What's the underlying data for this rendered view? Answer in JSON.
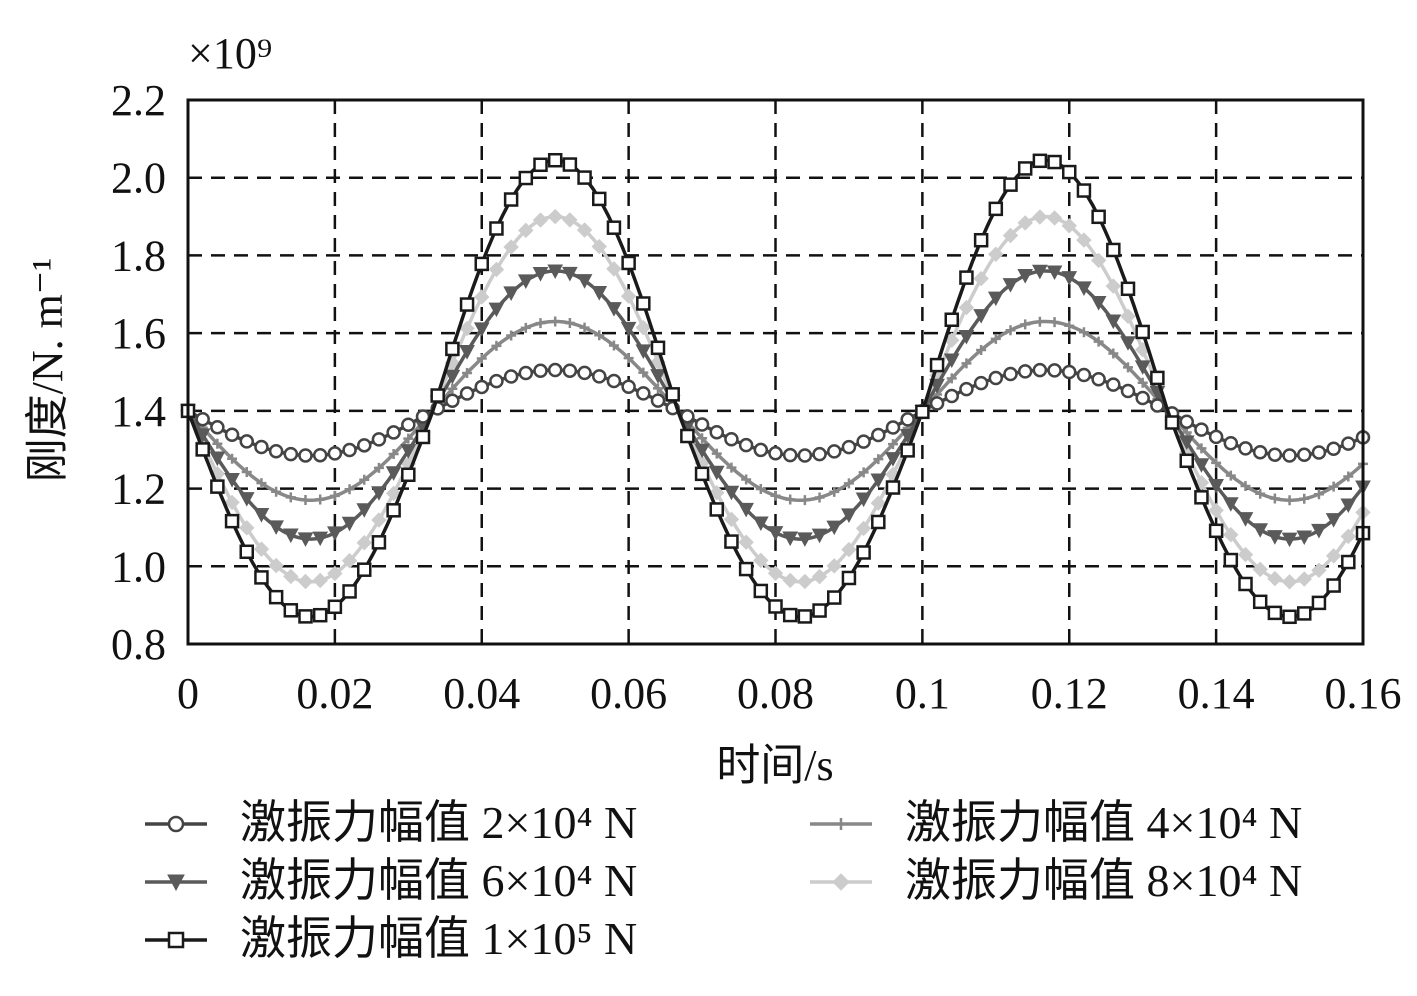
{
  "chart_data": {
    "type": "line",
    "y_multiplier": "×10⁹",
    "xlabel": "时间/s",
    "ylabel": "刚度/N. m⁻¹",
    "xlim": [
      0,
      0.16
    ],
    "ylim": [
      0.8,
      2.2
    ],
    "x_ticks": [
      "0",
      "0.02",
      "0.04",
      "0.06",
      "0.08",
      "0.1",
      "0.12",
      "0.14",
      "0.16"
    ],
    "y_ticks": [
      "0.8",
      "1.0",
      "1.2",
      "1.4",
      "1.6",
      "1.8",
      "2.0",
      "2.2"
    ],
    "grid": true,
    "legend_position": "bottom",
    "series": [
      {
        "name": "激振力幅值 2×10⁴ N",
        "color": "#444444",
        "marker": "circle",
        "min": 1.285,
        "max": 1.505
      },
      {
        "name": "激振力幅值 4×10⁴ N",
        "color": "#888888",
        "marker": "plus",
        "min": 1.17,
        "max": 1.63
      },
      {
        "name": "激振力幅值 6×10⁴ N",
        "color": "#5a5a5a",
        "marker": "triangle-down",
        "min": 1.07,
        "max": 1.76
      },
      {
        "name": "激振力幅值 8×10⁴ N",
        "color": "#cccccc",
        "marker": "diamond",
        "min": 0.96,
        "max": 1.9
      },
      {
        "name": "激振力幅值 1×10⁵ N",
        "color": "#1a1a1a",
        "marker": "square",
        "min": 0.87,
        "max": 2.045
      }
    ],
    "waveform": {
      "start_value": 1.4,
      "period": 0.0667,
      "first_min_at": 0.0167,
      "first_max_at": 0.05
    }
  }
}
